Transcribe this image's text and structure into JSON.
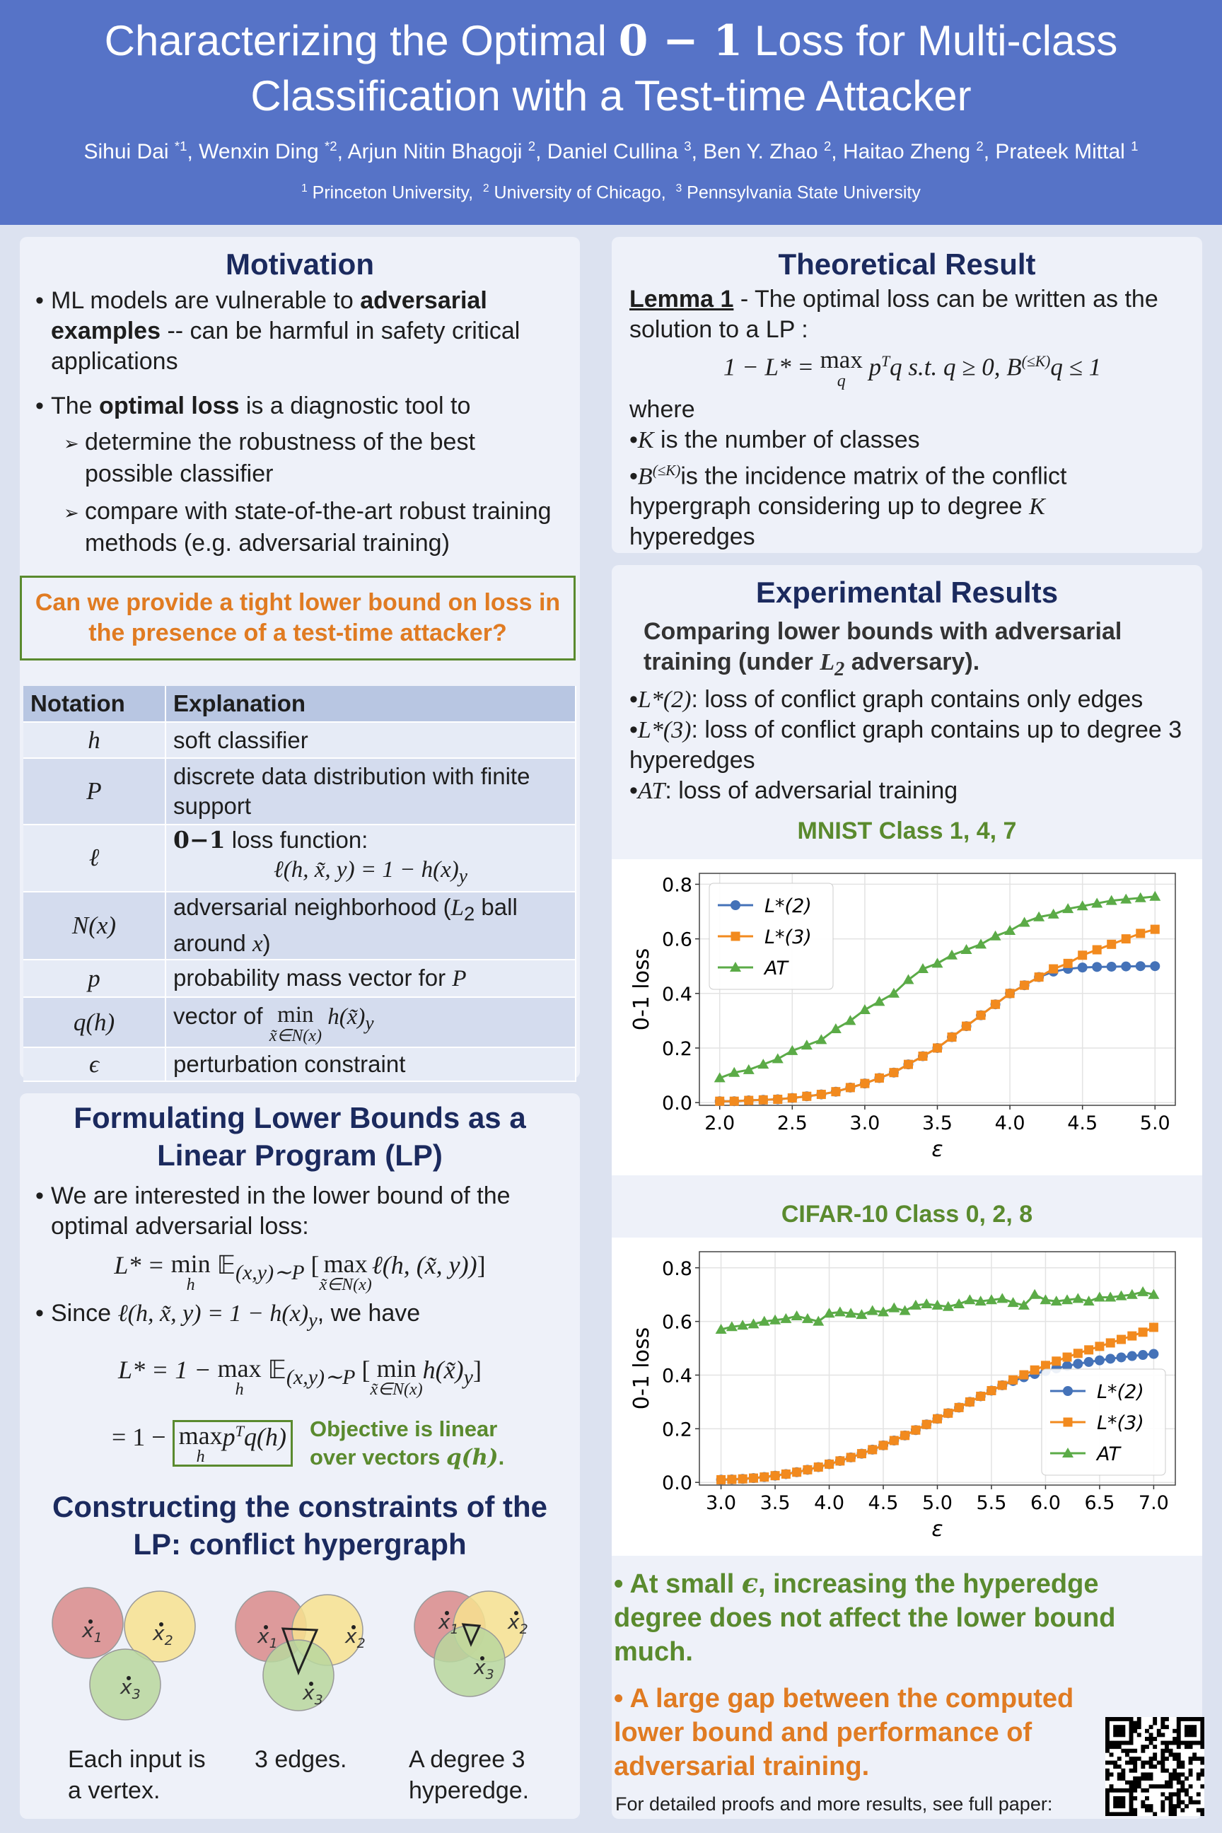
{
  "header": {
    "title": [
      [
        "Characterizing the Optimal ",
        "0 − 1",
        " Loss for Multi-class"
      ],
      [
        "Classification with a Test-time Attacker"
      ]
    ],
    "authors": [
      [
        "Sihui Dai ",
        "*1",
        ", "
      ],
      [
        "Wenxin Ding ",
        "*2",
        ", "
      ],
      [
        "Arjun Nitin Bhagoji ",
        "2",
        ", "
      ],
      [
        "Daniel Cullina ",
        "3",
        ", "
      ],
      [
        "Ben Y. Zhao ",
        "2",
        ", "
      ],
      [
        "Haitao Zheng ",
        "2",
        ", "
      ],
      [
        "Prateek Mittal ",
        "1"
      ]
    ],
    "affiliations": [
      [
        "1",
        " Princeton University,  "
      ],
      [
        "2",
        " University of Chicago,  "
      ],
      [
        "3",
        " Pennsylvania State University"
      ]
    ]
  },
  "motivation": {
    "heading": "Motivation",
    "bullets": [
      [
        "ML models are vulnerable to ",
        "adversarial examples",
        " -- can be harmful in safety critical applications"
      ],
      [
        "The ",
        "optimal loss",
        " is a diagnostic tool to"
      ]
    ],
    "sub_bullets": [
      "determine the robustness of the best possible classifier",
      "compare with state-of-the-art robust training methods (e.g. adversarial training)"
    ]
  },
  "question": "Can we provide a tight lower bound on loss in the presence of a test-time attacker?",
  "notation_table": {
    "header": [
      "Notation",
      "Explanation"
    ],
    "rows": [
      [
        "h",
        "soft classifier"
      ],
      [
        "P",
        "discrete data distribution with finite support"
      ],
      [
        "ℓ",
        [
          "0−1",
          " loss function:",
          "ℓ(h, x̃, y) = 1 − h(x)",
          "y"
        ]
      ],
      [
        "N(x)",
        [
          "adversarial neighborhood (",
          "L",
          "2",
          " ball around ",
          "x",
          ")"
        ]
      ],
      [
        "p",
        [
          "probability mass vector for ",
          "P"
        ]
      ],
      [
        "q(h)",
        [
          "vector of ",
          "min",
          "x̃∈N(x)",
          " h(x̃)",
          "y"
        ]
      ],
      [
        "ϵ",
        "perturbation constraint"
      ]
    ]
  },
  "formulation": {
    "heading": "Formulating Lower Bounds as a Linear Program (LP)",
    "bullet_1": "We are interested in the lower bound of the optimal adversarial loss:",
    "equation_1": [
      "L* = ",
      "min",
      "h",
      " 𝔼",
      "(x,y)∼P",
      " [",
      "max",
      "x̃∈N(x)",
      "ℓ(h, (x̃, y))",
      "]"
    ],
    "bullet_2": [
      "Since ",
      "ℓ(h, x̃, y) = 1 − h(x)",
      "y",
      ", we have"
    ],
    "equation_2": [
      "L* = 1 − ",
      "max",
      "h",
      " 𝔼",
      "(x,y)∼P",
      " [",
      "min",
      "x̃∈N(x)",
      "h(x̃)",
      "y",
      "]"
    ],
    "equation_3": [
      "= 1 − ",
      "max",
      "h",
      "p",
      "T",
      "q(h)"
    ],
    "note": [
      "Objective is linear over vectors ",
      "q(h)",
      "."
    ]
  },
  "constraints": {
    "heading": "Constructing the constraints of the LP: conflict hypergraph",
    "vertex_labels": [
      [
        "x",
        "1"
      ],
      [
        "x",
        "2"
      ],
      [
        "x",
        "3"
      ]
    ],
    "captions": [
      "Each input is a vertex.",
      "3 edges.",
      "A degree 3 hyperedge."
    ]
  },
  "theory": {
    "heading": "Theoretical Result",
    "lemma": [
      "Lemma 1",
      " - The optimal loss can be written as the solution to a LP :"
    ],
    "equation": [
      "1 − L* = ",
      "max",
      "q",
      " p",
      "T",
      "q s.t. q ≥ 0, B",
      "(≤K)",
      "q ≤ 1"
    ],
    "where": "where",
    "bullets": [
      [
        "K",
        " is the number of classes"
      ],
      [
        "B",
        "(≤K)",
        "is the incidence matrix of the conflict hypergraph considering up to degree ",
        "K",
        " hyperedges"
      ]
    ]
  },
  "experiments": {
    "heading": "Experimental Results",
    "subheading": [
      "Comparing lower bounds with adversarial training (under ",
      "L",
      "2",
      " adversary)."
    ],
    "bullets": [
      [
        "L*(2)",
        ": loss of conflict graph contains only edges"
      ],
      [
        "L*(3)",
        ": loss of conflict graph contains up to degree 3 hyperedges"
      ],
      [
        "AT",
        ": loss of adversarial training"
      ]
    ],
    "findings": [
      [
        "At small ",
        "ϵ",
        ", increasing the hyperedge degree does not affect the lower bound much."
      ],
      [
        "A large gap between the computed lower bound and performance of adversarial training."
      ]
    ],
    "footer": "For detailed proofs and more results, see full paper:"
  },
  "chart_data": [
    {
      "type": "line",
      "title": "MNIST Class 1, 4, 7",
      "xlabel": "ε",
      "ylabel": "0-1 loss",
      "x": [
        2.0,
        2.1,
        2.2,
        2.3,
        2.4,
        2.5,
        2.6,
        2.7,
        2.8,
        2.9,
        3.0,
        3.1,
        3.2,
        3.3,
        3.4,
        3.5,
        3.6,
        3.7,
        3.8,
        3.9,
        4.0,
        4.1,
        4.2,
        4.3,
        4.4,
        4.5,
        4.6,
        4.7,
        4.8,
        4.9,
        5.0
      ],
      "series": [
        {
          "name": "L*(2)",
          "color": "#4472b8",
          "marker": "circle",
          "values": [
            0.005,
            0.005,
            0.008,
            0.01,
            0.012,
            0.017,
            0.023,
            0.03,
            0.04,
            0.055,
            0.07,
            0.09,
            0.11,
            0.14,
            0.17,
            0.2,
            0.24,
            0.28,
            0.32,
            0.36,
            0.4,
            0.43,
            0.46,
            0.48,
            0.49,
            0.495,
            0.497,
            0.498,
            0.499,
            0.5,
            0.5
          ]
        },
        {
          "name": "L*(3)",
          "color": "#f28a1e",
          "marker": "square",
          "values": [
            0.005,
            0.005,
            0.008,
            0.01,
            0.012,
            0.017,
            0.023,
            0.03,
            0.04,
            0.055,
            0.07,
            0.09,
            0.11,
            0.14,
            0.17,
            0.2,
            0.24,
            0.28,
            0.32,
            0.36,
            0.4,
            0.43,
            0.46,
            0.49,
            0.51,
            0.54,
            0.56,
            0.58,
            0.6,
            0.62,
            0.635
          ]
        },
        {
          "name": "AT",
          "color": "#5bab47",
          "marker": "triangle",
          "values": [
            0.09,
            0.11,
            0.12,
            0.14,
            0.16,
            0.19,
            0.21,
            0.23,
            0.27,
            0.3,
            0.34,
            0.37,
            0.4,
            0.45,
            0.49,
            0.51,
            0.54,
            0.56,
            0.58,
            0.61,
            0.63,
            0.66,
            0.68,
            0.69,
            0.71,
            0.72,
            0.73,
            0.74,
            0.745,
            0.75,
            0.755
          ]
        }
      ],
      "xlim": [
        1.86,
        5.14
      ],
      "ylim": [
        -0.01,
        0.84
      ],
      "xticks": [
        {
          "value": 2,
          "label": "2.0"
        },
        2.5,
        {
          "value": 3,
          "label": "3.0"
        },
        3.5,
        {
          "value": 4,
          "label": "4.0"
        },
        4.5,
        {
          "value": 5,
          "label": "5.0"
        }
      ],
      "yticks": [
        {
          "value": 0,
          "label": "0.0"
        },
        0.2,
        0.4,
        0.6,
        0.8
      ],
      "grid": true,
      "legend": "upper left"
    },
    {
      "type": "line",
      "title": "CIFAR-10 Class 0, 2, 8",
      "xlabel": "ε",
      "ylabel": "0-1 loss",
      "x": [
        3.0,
        3.1,
        3.2,
        3.3,
        3.4,
        3.5,
        3.6,
        3.7,
        3.8,
        3.9,
        4.0,
        4.1,
        4.2,
        4.3,
        4.4,
        4.5,
        4.6,
        4.7,
        4.8,
        4.9,
        5.0,
        5.1,
        5.2,
        5.3,
        5.4,
        5.5,
        5.6,
        5.7,
        5.8,
        5.9,
        6.0,
        6.1,
        6.2,
        6.3,
        6.4,
        6.5,
        6.6,
        6.7,
        6.8,
        6.9,
        7.0
      ],
      "series": [
        {
          "name": "L*(2)",
          "color": "#4472b8",
          "marker": "circle",
          "values": [
            0.01,
            0.011,
            0.013,
            0.016,
            0.02,
            0.025,
            0.031,
            0.038,
            0.047,
            0.057,
            0.068,
            0.08,
            0.093,
            0.107,
            0.122,
            0.138,
            0.156,
            0.175,
            0.195,
            0.216,
            0.237,
            0.258,
            0.279,
            0.3,
            0.321,
            0.342,
            0.362,
            0.378,
            0.392,
            0.404,
            0.415,
            0.425,
            0.434,
            0.442,
            0.449,
            0.455,
            0.461,
            0.466,
            0.471,
            0.475,
            0.479
          ]
        },
        {
          "name": "L*(3)",
          "color": "#f28a1e",
          "marker": "square",
          "values": [
            0.01,
            0.011,
            0.013,
            0.016,
            0.02,
            0.025,
            0.031,
            0.038,
            0.047,
            0.057,
            0.068,
            0.08,
            0.093,
            0.107,
            0.122,
            0.138,
            0.156,
            0.175,
            0.195,
            0.216,
            0.237,
            0.258,
            0.279,
            0.3,
            0.321,
            0.342,
            0.362,
            0.382,
            0.401,
            0.419,
            0.436,
            0.452,
            0.467,
            0.481,
            0.494,
            0.507,
            0.52,
            0.533,
            0.546,
            0.56,
            0.578
          ]
        },
        {
          "name": "AT",
          "color": "#5bab47",
          "marker": "triangle",
          "values": [
            0.57,
            0.58,
            0.585,
            0.59,
            0.6,
            0.605,
            0.61,
            0.62,
            0.61,
            0.6,
            0.63,
            0.635,
            0.63,
            0.625,
            0.64,
            0.635,
            0.65,
            0.64,
            0.66,
            0.665,
            0.66,
            0.655,
            0.665,
            0.68,
            0.675,
            0.68,
            0.685,
            0.67,
            0.66,
            0.7,
            0.68,
            0.675,
            0.68,
            0.685,
            0.675,
            0.69,
            0.69,
            0.695,
            0.7,
            0.71,
            0.7
          ]
        }
      ],
      "xlim": [
        2.8,
        7.2
      ],
      "ylim": [
        -0.01,
        0.86
      ],
      "xticks": [
        {
          "value": 3,
          "label": "3.0"
        },
        3.5,
        {
          "value": 4,
          "label": "4.0"
        },
        4.5,
        {
          "value": 5,
          "label": "5.0"
        },
        5.5,
        {
          "value": 6,
          "label": "6.0"
        },
        6.5,
        {
          "value": 7,
          "label": "7.0"
        }
      ],
      "yticks": [
        {
          "value": 0,
          "label": "0.0"
        },
        0.2,
        0.4,
        0.6,
        0.8
      ],
      "grid": true,
      "legend": "lower right"
    }
  ]
}
